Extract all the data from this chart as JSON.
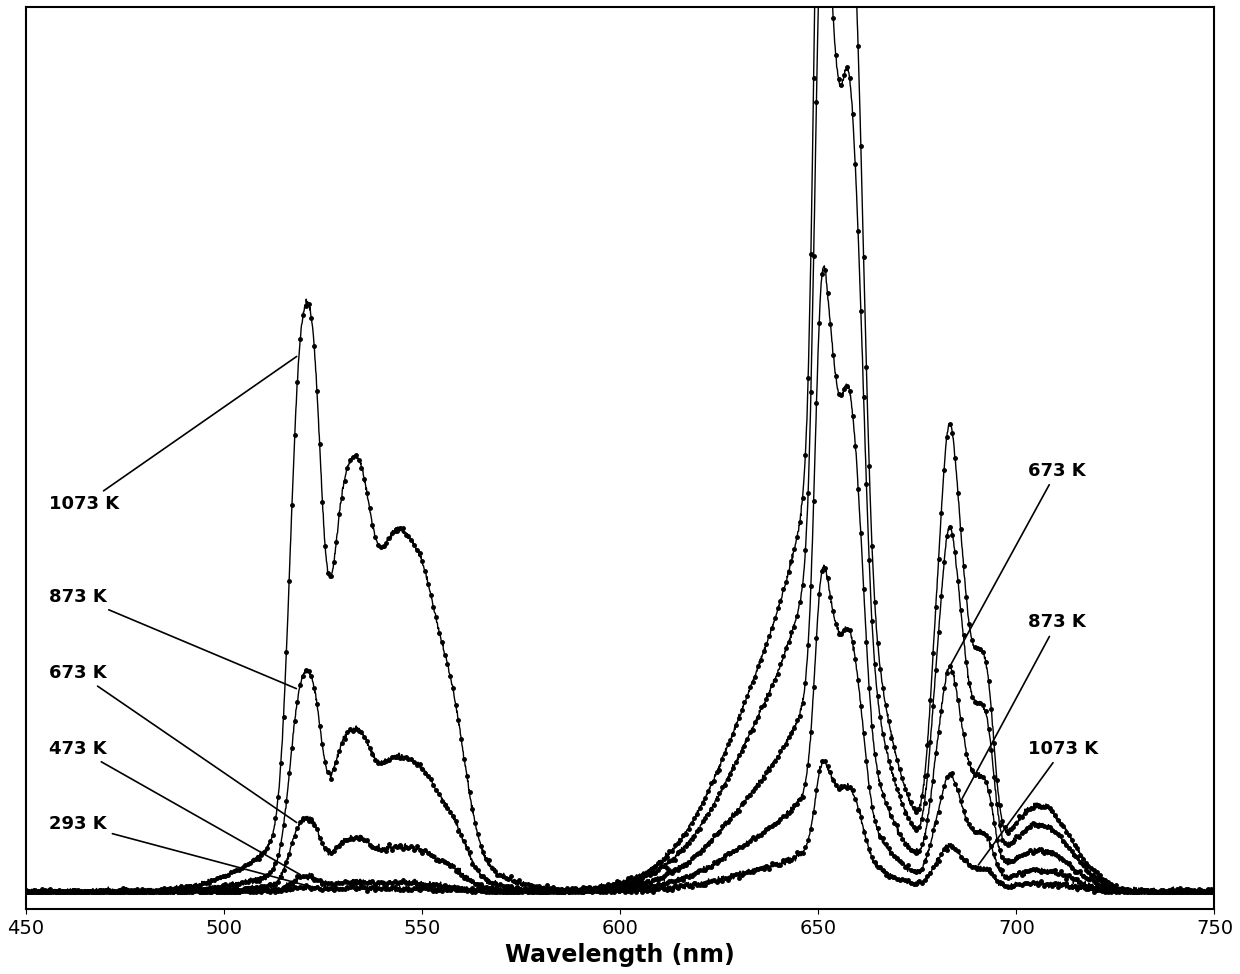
{
  "xlabel": "Wavelength (nm)",
  "xlim": [
    450,
    750
  ],
  "ylim": [
    -0.02,
    1.05
  ],
  "xlabel_fontsize": 17,
  "line_color": "#000000",
  "temperatures": [
    293,
    473,
    673,
    873,
    1073
  ],
  "marker_size": 2.5,
  "linewidth": 1.0,
  "green_scales": [
    0.004,
    0.012,
    0.06,
    0.18,
    0.48
  ],
  "red_scales": [
    1.0,
    0.78,
    0.48,
    0.25,
    0.1
  ],
  "annotations_right": {
    "293 K": [
      660,
      0.97,
      710,
      0.93
    ],
    "473 K": [
      660,
      0.76,
      710,
      0.76
    ],
    "673 K": [
      683,
      0.52,
      710,
      0.5
    ]
  },
  "annotations_right2": {
    "873 K": [
      688,
      0.26,
      710,
      0.32
    ],
    "1073 K": [
      692,
      0.12,
      710,
      0.17
    ]
  },
  "annotations_left": {
    "1073 K": [
      519,
      0.46,
      456,
      0.47
    ],
    "873 K": [
      519,
      0.35,
      456,
      0.36
    ],
    "673 K": [
      519,
      0.27,
      456,
      0.27
    ],
    "473 K": [
      521,
      0.18,
      456,
      0.18
    ],
    "293 K": [
      521,
      0.08,
      456,
      0.08
    ]
  }
}
